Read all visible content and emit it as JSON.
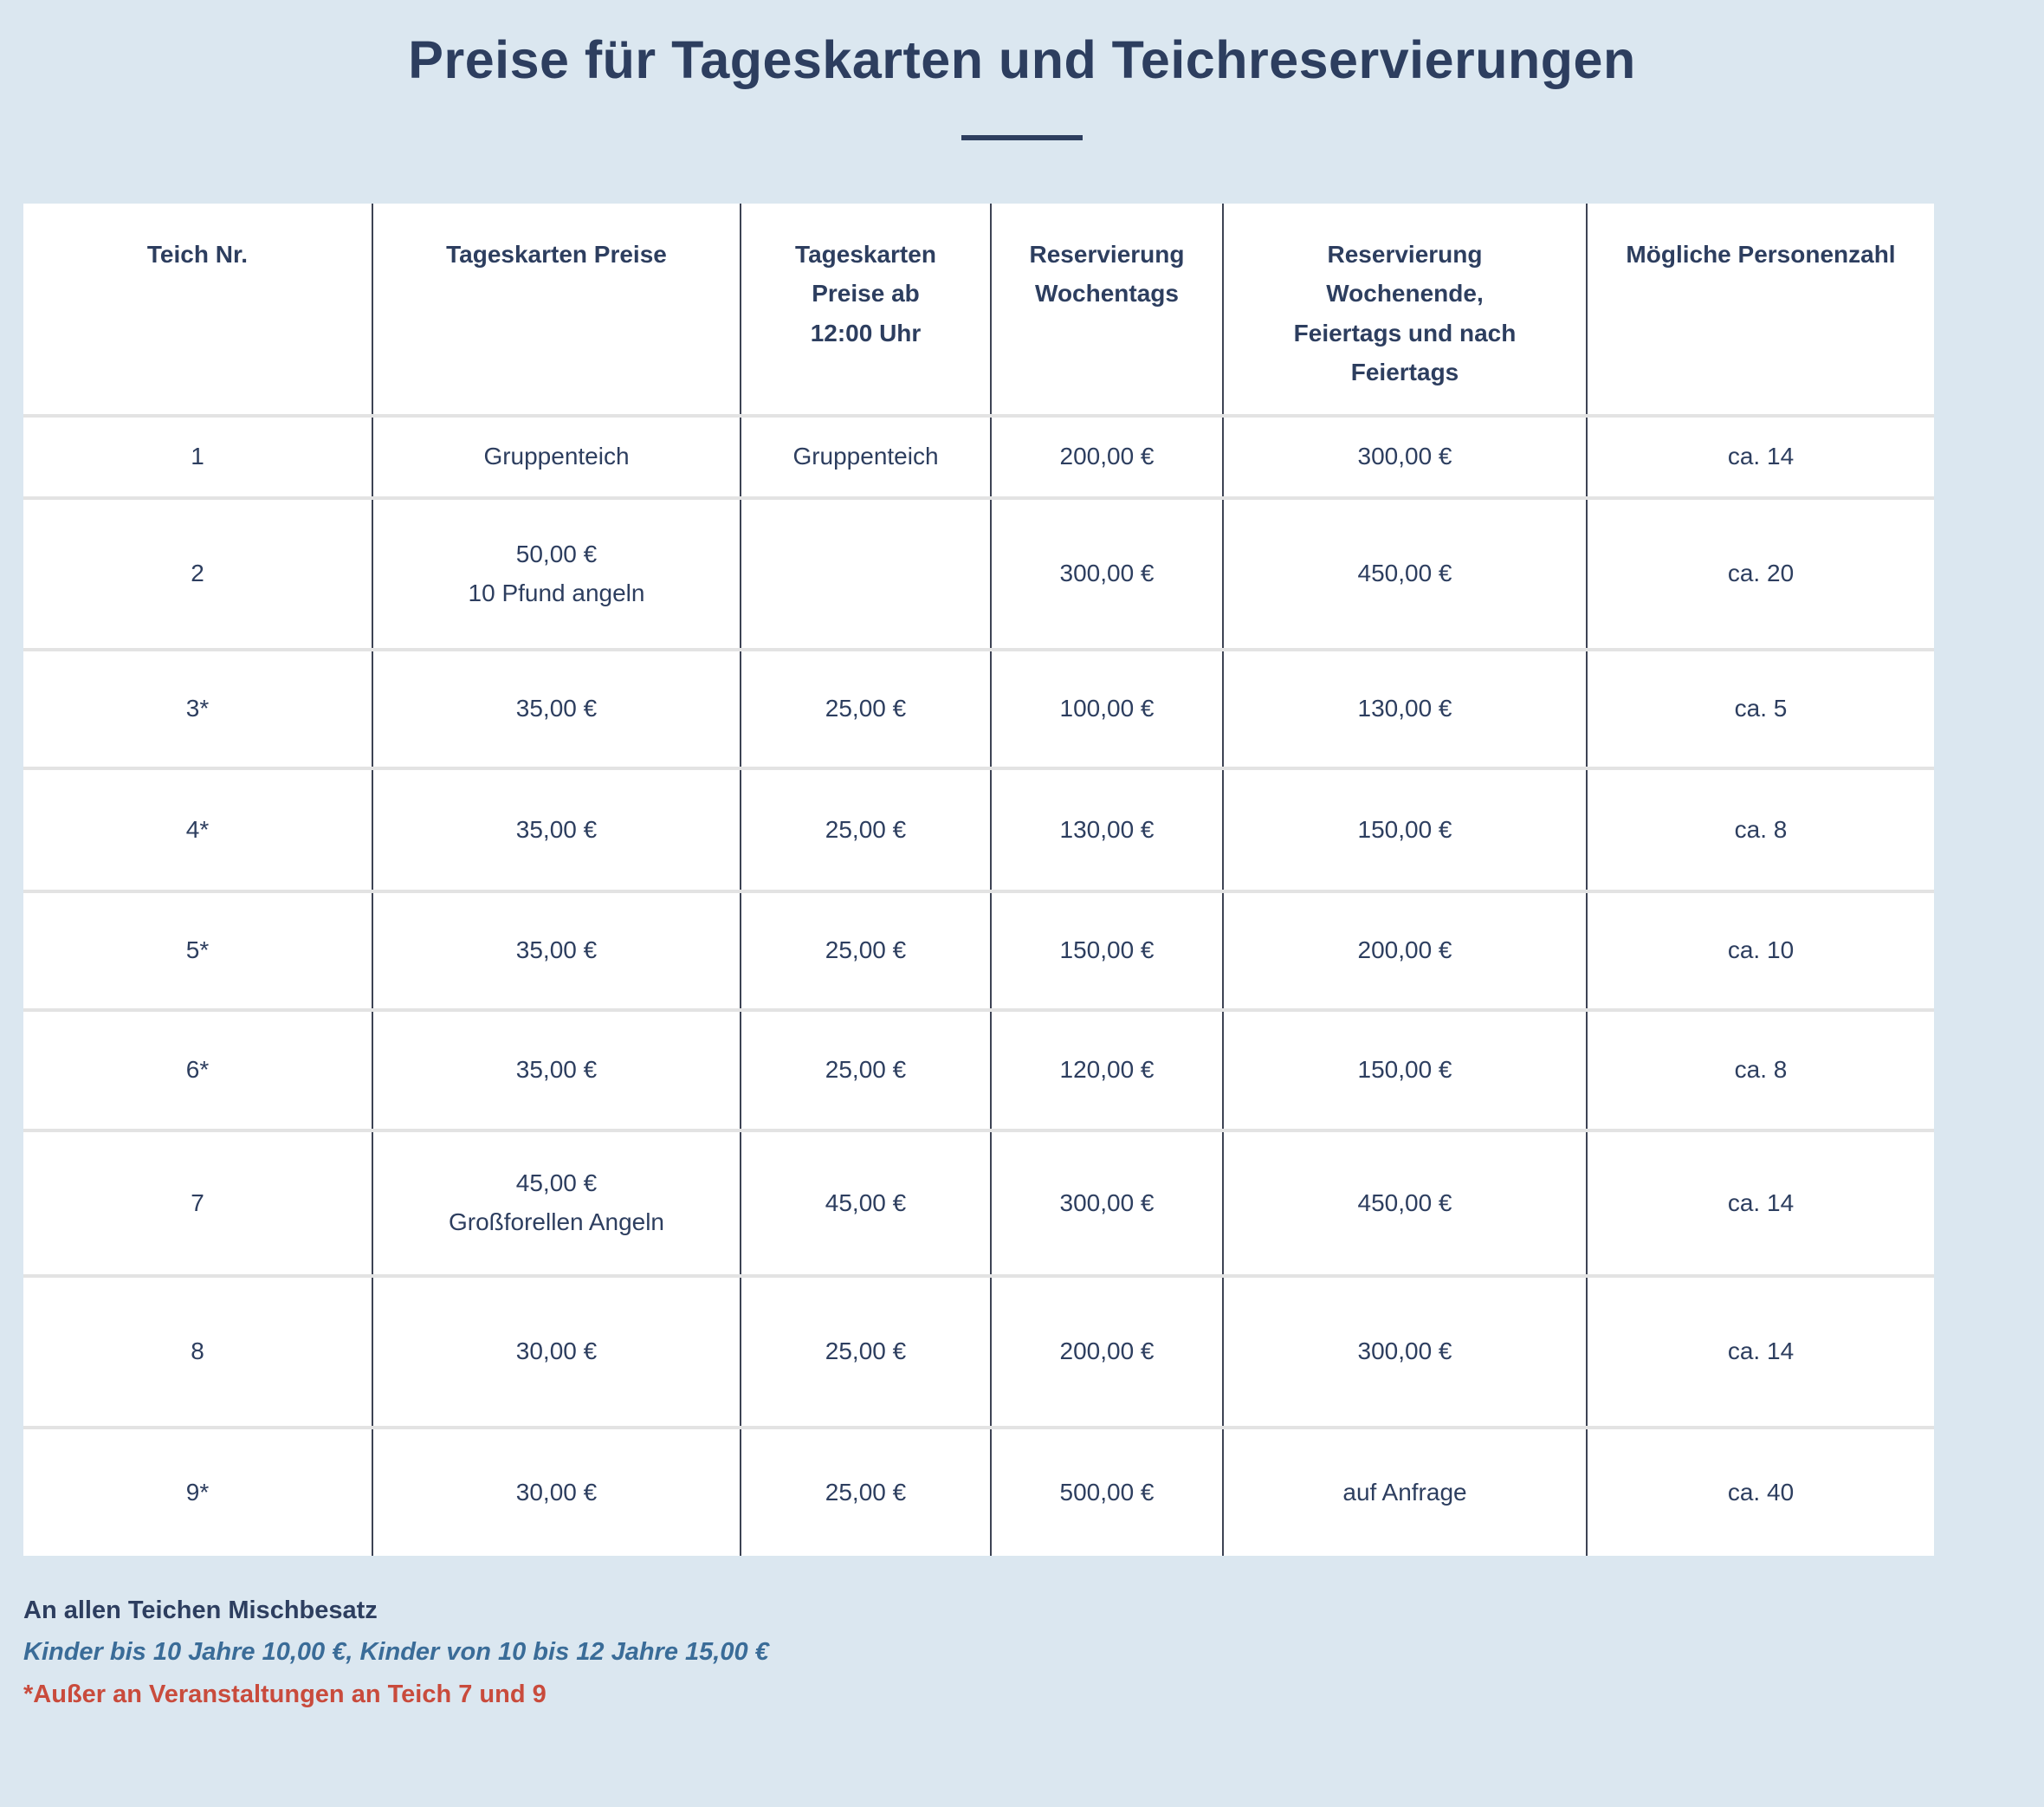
{
  "page": {
    "title": "Preise für Tageskarten und Teichreservierungen"
  },
  "colors": {
    "background": "#dbe7f0",
    "text_navy": "#2d3e5f",
    "divider_dark": "#3d4354",
    "row_separator": "#e3e3e3",
    "footer_blue": "#3a6c98",
    "footer_red": "#c94b3c"
  },
  "chart_data": {
    "type": "table",
    "title": "Preise für Tageskarten und Teichreservierungen",
    "columns": [
      "Teich Nr.",
      "Tageskarten Preise",
      "Tageskarten\nPreise ab\n12:00 Uhr",
      "Reservierung\nWochentags",
      "Reservierung\nWochenende,\nFeiertags und nach\nFeiertags",
      "Mögliche Personenzahl"
    ],
    "rows": [
      [
        "1",
        "Gruppenteich",
        "Gruppenteich",
        "200,00 €",
        "300,00 €",
        "ca. 14"
      ],
      [
        "2",
        "50,00 €\n10 Pfund angeln",
        "",
        "300,00 €",
        "450,00 €",
        "ca. 20"
      ],
      [
        "3*",
        "35,00 €",
        "25,00 €",
        "100,00 €",
        "130,00 €",
        "ca. 5"
      ],
      [
        "4*",
        "35,00 €",
        "25,00 €",
        "130,00 €",
        "150,00 €",
        "ca. 8"
      ],
      [
        "5*",
        "35,00 €",
        "25,00 €",
        "150,00 €",
        "200,00 €",
        "ca. 10"
      ],
      [
        "6*",
        "35,00 €",
        "25,00 €",
        "120,00 €",
        "150,00 €",
        "ca. 8"
      ],
      [
        "7",
        "45,00 €\nGroßforellen Angeln",
        "45,00 €",
        "300,00 €",
        "450,00 €",
        "ca. 14"
      ],
      [
        "8",
        "30,00 €",
        "25,00 €",
        "200,00 €",
        "300,00 €",
        "ca. 14"
      ],
      [
        "9*",
        "30,00 €",
        "25,00 €",
        "500,00 €",
        "auf Anfrage",
        "ca. 40"
      ]
    ],
    "annotations": [
      "An allen Teichen Mischbesatz",
      "Kinder bis 10 Jahre 10,00 €, Kinder von 10 bis 12 Jahre 15,00 €",
      "*Außer an Veranstaltungen an Teich 7 und 9"
    ]
  }
}
